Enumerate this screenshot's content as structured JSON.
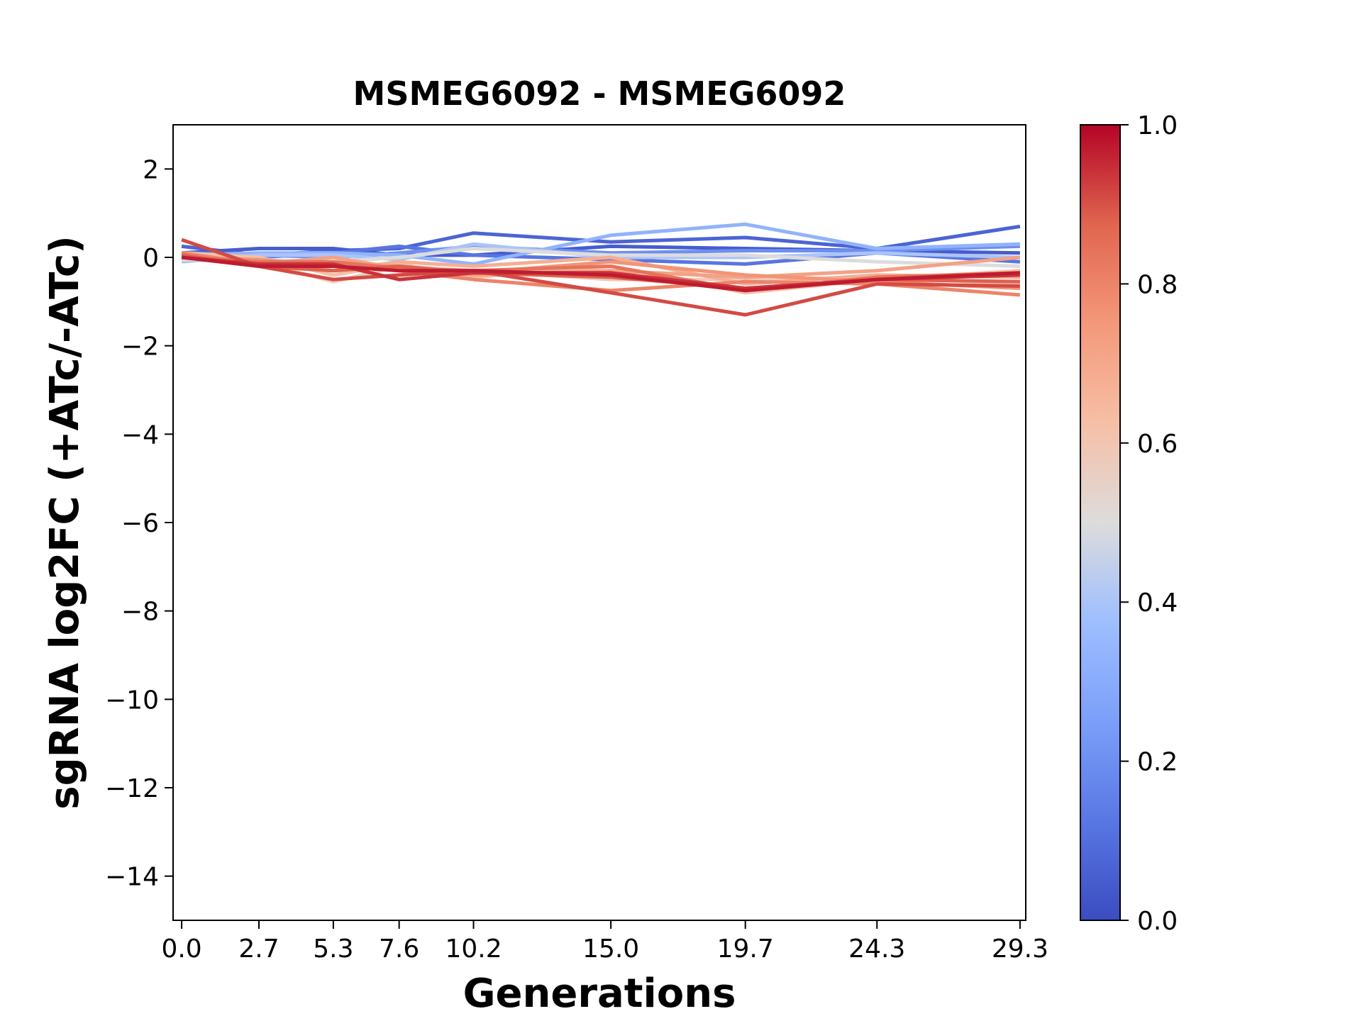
{
  "chart_data": {
    "type": "line",
    "title": "MSMEG6092 - MSMEG6092",
    "xlabel": "Generations",
    "ylabel": "sgRNA log2FC (+ATc/-ATc)",
    "x": [
      0.0,
      2.7,
      5.3,
      7.6,
      10.2,
      15.0,
      19.7,
      24.3,
      29.3
    ],
    "x_tick_labels": [
      "0.0",
      "2.7",
      "5.3",
      "7.6",
      "10.2",
      "15.0",
      "19.7",
      "24.3",
      "29.3"
    ],
    "xlim": [
      -0.3,
      29.5
    ],
    "ylim": [
      -15,
      3
    ],
    "y_ticks": [
      2,
      0,
      -2,
      -4,
      -6,
      -8,
      -10,
      -12,
      -14
    ],
    "y_tick_labels": [
      "2",
      "0",
      "−2",
      "−4",
      "−6",
      "−8",
      "−10",
      "−12",
      "−14"
    ],
    "grid": false,
    "colormap": "coolwarm",
    "colorbar": {
      "range": [
        0.0,
        1.0
      ],
      "ticks": [
        0.0,
        0.2,
        0.4,
        0.6,
        0.8,
        1.0
      ],
      "tick_labels": [
        "0.0",
        "0.2",
        "0.4",
        "0.6",
        "0.8",
        "1.0"
      ]
    },
    "series": [
      {
        "color_value": 0.07,
        "values": [
          0.25,
          0.05,
          0.15,
          0.2,
          0.55,
          0.35,
          0.45,
          0.2,
          0.7
        ]
      },
      {
        "color_value": 0.05,
        "values": [
          0.1,
          0.2,
          0.2,
          0.05,
          0.05,
          0.25,
          0.2,
          0.15,
          0.1
        ]
      },
      {
        "color_value": 0.12,
        "values": [
          0.05,
          0.0,
          0.1,
          0.25,
          0.05,
          -0.05,
          -0.15,
          0.1,
          -0.1
        ]
      },
      {
        "color_value": 0.2,
        "values": [
          0.1,
          0.05,
          0.0,
          0.1,
          0.25,
          0.1,
          0.15,
          0.15,
          0.25
        ]
      },
      {
        "color_value": 0.33,
        "values": [
          0.05,
          0.1,
          0.1,
          0.05,
          -0.15,
          0.5,
          0.75,
          0.2,
          0.3
        ]
      },
      {
        "color_value": 0.4,
        "values": [
          -0.1,
          0.05,
          0.05,
          -0.05,
          0.3,
          0.0,
          0.0,
          0.1,
          0.0
        ]
      },
      {
        "color_value": 0.5,
        "values": [
          -0.05,
          -0.05,
          -0.1,
          0.0,
          0.2,
          0.05,
          0.05,
          -0.1,
          -0.2
        ]
      },
      {
        "color_value": 0.57,
        "values": [
          0.0,
          -0.1,
          -0.55,
          -0.2,
          -0.3,
          -0.5,
          -0.5,
          -0.45,
          -0.6
        ]
      },
      {
        "color_value": 0.62,
        "values": [
          0.1,
          0.0,
          -0.4,
          -0.15,
          -0.45,
          -0.2,
          -0.8,
          -0.5,
          -0.3
        ]
      },
      {
        "color_value": 0.68,
        "values": [
          0.05,
          -0.1,
          -0.3,
          -0.1,
          -0.2,
          0.0,
          -0.6,
          -0.4,
          -0.45
        ]
      },
      {
        "color_value": 0.72,
        "values": [
          0.05,
          -0.15,
          0.0,
          -0.25,
          -0.4,
          -0.3,
          -0.45,
          -0.3,
          0.0
        ]
      },
      {
        "color_value": 0.76,
        "values": [
          0.0,
          -0.05,
          -0.2,
          -0.2,
          -0.35,
          -0.1,
          -0.4,
          -0.55,
          -0.7
        ]
      },
      {
        "color_value": 0.8,
        "values": [
          0.1,
          -0.15,
          -0.15,
          -0.3,
          -0.5,
          -0.75,
          -0.55,
          -0.6,
          -0.85
        ]
      },
      {
        "color_value": 0.84,
        "values": [
          0.0,
          -0.1,
          -0.1,
          -0.25,
          -0.3,
          -0.2,
          -0.75,
          -0.45,
          -0.35
        ]
      },
      {
        "color_value": 0.88,
        "values": [
          0.05,
          -0.2,
          -0.3,
          -0.2,
          -0.35,
          -0.45,
          -0.7,
          -0.5,
          -0.55
        ]
      },
      {
        "color_value": 0.91,
        "values": [
          0.4,
          -0.2,
          -0.5,
          -0.4,
          -0.3,
          -0.8,
          -1.3,
          -0.6,
          -0.65
        ]
      },
      {
        "color_value": 0.94,
        "values": [
          0.0,
          -0.15,
          -0.15,
          -0.5,
          -0.35,
          -0.35,
          -0.7,
          -0.5,
          -0.4
        ]
      },
      {
        "color_value": 0.97,
        "values": [
          0.0,
          -0.2,
          -0.2,
          -0.3,
          -0.3,
          -0.4,
          -0.75,
          -0.5,
          -0.35
        ]
      }
    ]
  }
}
